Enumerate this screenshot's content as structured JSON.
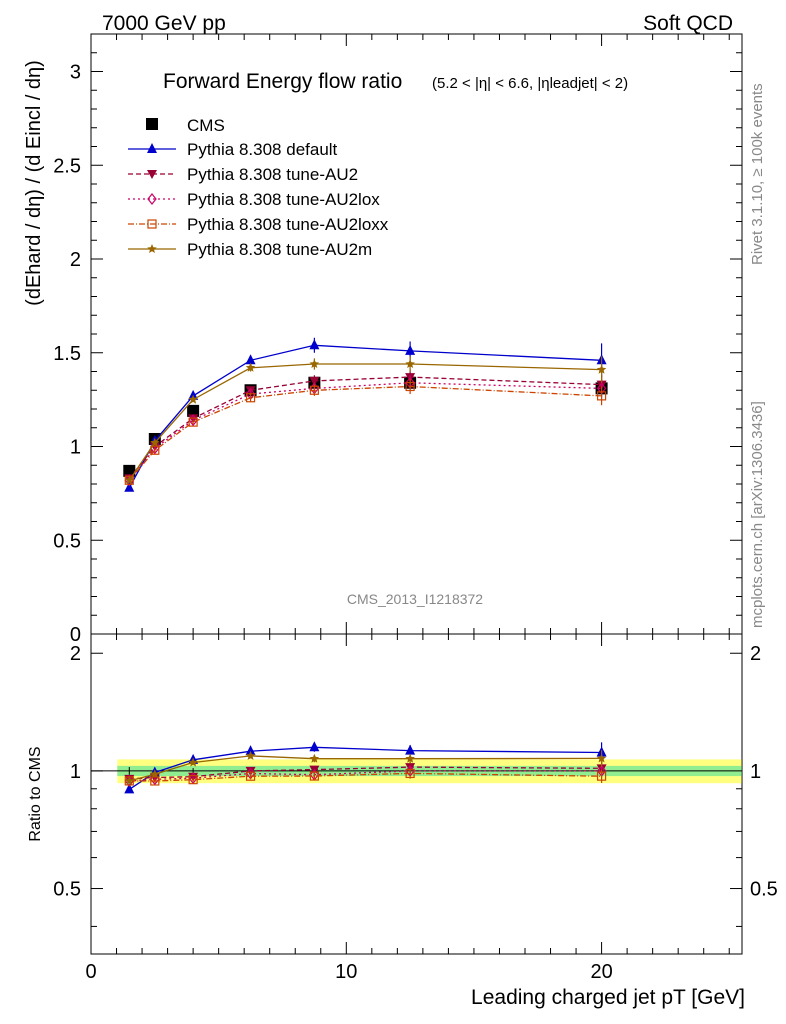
{
  "header": {
    "left": "7000 GeV pp",
    "right": "Soft QCD"
  },
  "side": {
    "rivet": "Rivet 3.1.10, ≥ 100k events",
    "mcplots": "mcplots.cern.ch [arXiv:1306.3436]"
  },
  "chart_data": {
    "type": "line",
    "title": "Forward Energy flow ratio",
    "subtitle": "(5.2 < |η| < 6.6, |ηleadjet| < 2)",
    "ylabel": "(dEhard / dη) / (d Eincl / dη)",
    "xlabel": "Leading charged jet pT [GeV]",
    "analysis_label": "CMS_2013_I1218372",
    "xlim": [
      0,
      25.5
    ],
    "ylim": [
      0,
      3.2
    ],
    "x_ticks": [
      "0",
      "10",
      "20"
    ],
    "y_ticks": [
      "0",
      "0.5",
      "1",
      "1.5",
      "2",
      "2.5",
      "3"
    ],
    "x": [
      1.5,
      2.5,
      4.0,
      6.25,
      8.75,
      12.5,
      20.0
    ],
    "data": {
      "name": "CMS",
      "values": [
        0.87,
        1.04,
        1.19,
        1.3,
        1.34,
        1.34,
        1.31
      ],
      "errors": [
        0.02,
        0.02,
        0.02,
        0.02,
        0.02,
        0.03,
        0.04
      ]
    },
    "series": [
      {
        "name": "Pythia 8.308 default",
        "color": "#0000cc",
        "dash": "",
        "marker": "triangle-up",
        "values": [
          0.78,
          1.03,
          1.27,
          1.46,
          1.54,
          1.51,
          1.46
        ],
        "errors": [
          0.01,
          0.01,
          0.01,
          0.02,
          0.04,
          0.05,
          0.09
        ]
      },
      {
        "name": "Pythia 8.308 tune-AU2",
        "color": "#990033",
        "dash": "5,3",
        "marker": "triangle-down",
        "values": [
          0.83,
          1.0,
          1.15,
          1.3,
          1.35,
          1.37,
          1.33
        ],
        "errors": [
          0.01,
          0.01,
          0.01,
          0.02,
          0.03,
          0.04,
          0.05
        ]
      },
      {
        "name": "Pythia 8.308 tune-AU2lox",
        "color": "#cc0066",
        "dash": "2,3",
        "marker": "diamond-open",
        "values": [
          0.82,
          0.99,
          1.14,
          1.28,
          1.31,
          1.34,
          1.31
        ],
        "errors": [
          0.01,
          0.01,
          0.01,
          0.02,
          0.03,
          0.04,
          0.05
        ]
      },
      {
        "name": "Pythia 8.308 tune-AU2loxx",
        "color": "#cc4400",
        "dash": "6,2,1,2",
        "marker": "square-open",
        "values": [
          0.82,
          0.98,
          1.13,
          1.26,
          1.3,
          1.32,
          1.27
        ],
        "errors": [
          0.01,
          0.01,
          0.01,
          0.02,
          0.03,
          0.04,
          0.05
        ]
      },
      {
        "name": "Pythia 8.308 tune-AU2m",
        "color": "#996600",
        "dash": "",
        "marker": "star",
        "values": [
          0.82,
          1.02,
          1.25,
          1.42,
          1.44,
          1.44,
          1.41
        ],
        "errors": [
          0.01,
          0.01,
          0.01,
          0.02,
          0.03,
          0.04,
          0.07
        ]
      }
    ],
    "ratio": {
      "ylabel": "Ratio to CMS",
      "ylim": [
        0.34,
        2.24
      ],
      "y_ticks": [
        "0.5",
        "1",
        "2"
      ],
      "band_inner": 0.03,
      "band_outer": 0.07
    }
  }
}
